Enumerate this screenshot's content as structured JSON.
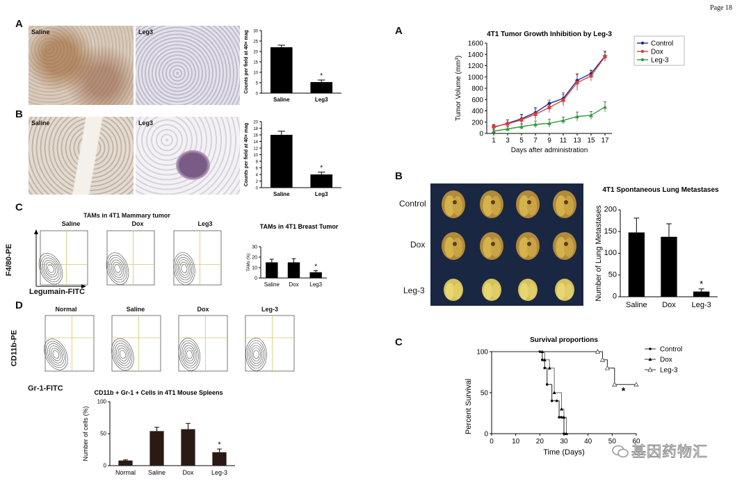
{
  "page": {
    "number": "Page 18"
  },
  "watermark": {
    "text": "基因药物汇"
  },
  "left": {
    "panelA": {
      "letter": "A",
      "images": [
        "Saline",
        "Leg3"
      ],
      "chart_data": {
        "type": "bar",
        "categories": [
          "Saline",
          "Leg3"
        ],
        "values": [
          22,
          5.3
        ],
        "errors": [
          1,
          1
        ],
        "ylabel": "Counts per field at 40× mag",
        "ylim": [
          0,
          30
        ],
        "ticks": [
          "0",
          "5",
          "10",
          "15",
          "20",
          "25",
          "30"
        ],
        "annotation": "*"
      }
    },
    "panelB": {
      "letter": "B",
      "images": [
        "Saline",
        "Leg3"
      ],
      "chart_data": {
        "type": "bar",
        "categories": [
          "Saline",
          "Leg3"
        ],
        "values": [
          16,
          4
        ],
        "errors": [
          1.1,
          0.7
        ],
        "ylabel": "Counts per field at 40× mag",
        "ylim": [
          0,
          20
        ],
        "ticks": [
          "0",
          "2",
          "4",
          "6",
          "8",
          "10",
          "12",
          "14",
          "16",
          "18",
          "20"
        ],
        "annotation": "*"
      }
    },
    "panelC": {
      "letter": "C",
      "title": "TAMs in 4T1 Mammary tumor",
      "columns": [
        "Saline",
        "Dox",
        "Leg3"
      ],
      "yaxis": "F4/80-PE",
      "xaxis": "Legumain-FITC",
      "chart_data": {
        "type": "bar",
        "title": "TAMs in 4T1 Breast Tumor",
        "categories": [
          "Saline",
          "Dox",
          "Leg3"
        ],
        "values": [
          15,
          15,
          5.5
        ],
        "errors": [
          3,
          3.5,
          1.5
        ],
        "ylabel": "TAMs (%)",
        "ylim": [
          0,
          30
        ],
        "ticks": [
          "0",
          "10",
          "20",
          "30"
        ],
        "annotation": "*"
      }
    },
    "panelD": {
      "letter": "D",
      "columns": [
        "Normal",
        "Saline",
        "Dox",
        "Leg-3"
      ],
      "yaxis": "CD11b-PE",
      "xaxis": "Gr-1-FITC",
      "chart_data": {
        "type": "bar",
        "title": "CD11b + Gr-1 + Cells in 4T1 Mouse Spleens",
        "categories": [
          "Normal",
          "Saline",
          "Dox",
          "Leg-3"
        ],
        "values": [
          8,
          54,
          57,
          21
        ],
        "errors": [
          1,
          6,
          9,
          5
        ],
        "ylabel": "Number of cells (%)",
        "ylim": [
          0,
          100
        ],
        "ticks": [
          "0",
          "50",
          "100"
        ],
        "annotation": "*"
      }
    }
  },
  "right": {
    "panelA": {
      "letter": "A",
      "chart_data": {
        "type": "line",
        "title": "4T1 Tumor Growth Inhibition by Leg-3",
        "xlabel": "Days after administration",
        "ylabel": "Tumor Volume (mm³)",
        "x": [
          1,
          3,
          5,
          7,
          9,
          11,
          13,
          15,
          17
        ],
        "xlim": [
          0,
          18
        ],
        "ylim": [
          0,
          1600
        ],
        "xticks": [
          "1",
          "3",
          "5",
          "7",
          "9",
          "11",
          "13",
          "15",
          "17"
        ],
        "yticks": [
          "0",
          "200",
          "400",
          "600",
          "800",
          "1000",
          "1200",
          "1400",
          "1600"
        ],
        "series": [
          {
            "name": "Control",
            "color": "#1c2a8c",
            "marker": "diamond",
            "values": [
              110,
              180,
              260,
              370,
              530,
              620,
              940,
              1060,
              1370
            ],
            "errors": [
              40,
              60,
              80,
              90,
              60,
              100,
              120,
              60,
              90
            ]
          },
          {
            "name": "Dox",
            "color": "#e03a3a",
            "marker": "square",
            "values": [
              120,
              170,
              240,
              340,
              460,
              590,
              900,
              1020,
              1360
            ],
            "errors": [
              40,
              70,
              90,
              100,
              90,
              100,
              140,
              90,
              80
            ]
          },
          {
            "name": "Leg-3",
            "color": "#2f9d3a",
            "marker": "triangle",
            "values": [
              40,
              80,
              120,
              160,
              180,
              230,
              300,
              320,
              470
            ],
            "errors": [
              30,
              40,
              50,
              60,
              70,
              60,
              80,
              70,
              90
            ]
          }
        ]
      }
    },
    "panelB": {
      "letter": "B",
      "rows": [
        "Control",
        "Dox",
        "Leg-3"
      ],
      "chart_data": {
        "type": "bar",
        "title": "4T1 Spontaneous Lung Metastases",
        "categories": [
          "Saline",
          "Dox",
          "Leg-3"
        ],
        "values": [
          148,
          138,
          12
        ],
        "errors": [
          33,
          30,
          6
        ],
        "ylabel": "Number of Lung Metastases",
        "ylim": [
          0,
          200
        ],
        "ticks": [
          "0",
          "50",
          "100",
          "150",
          "200"
        ],
        "annotation": "*"
      }
    },
    "panelC": {
      "letter": "C",
      "chart_data": {
        "type": "line",
        "title": "Survival proportions",
        "xlabel": "Time (Days)",
        "ylabel": "Percent Survival",
        "xlim": [
          0,
          60
        ],
        "ylim": [
          0,
          100
        ],
        "xticks": [
          "0",
          "10",
          "20",
          "30",
          "40",
          "50",
          "60"
        ],
        "yticks": [
          "0",
          "50",
          "100"
        ],
        "annotation": "*",
        "series": [
          {
            "name": "Control",
            "marker": "circle",
            "x": [
              0,
              20,
              21,
              22,
              23,
              25,
              27,
              28,
              29,
              30
            ],
            "values": [
              100,
              100,
              90,
              80,
              60,
              40,
              40,
              20,
              20,
              0
            ]
          },
          {
            "name": "Dox",
            "marker": "filled-triangle",
            "x": [
              0,
              21,
              22,
              24,
              26,
              29,
              30,
              31
            ],
            "values": [
              100,
              100,
              90,
              80,
              50,
              30,
              20,
              0
            ]
          },
          {
            "name": "Leg-3",
            "marker": "open-triangle",
            "x": [
              0,
              44,
              46,
              48,
              51,
              60
            ],
            "values": [
              100,
              100,
              90,
              80,
              60,
              60
            ]
          }
        ]
      }
    }
  }
}
